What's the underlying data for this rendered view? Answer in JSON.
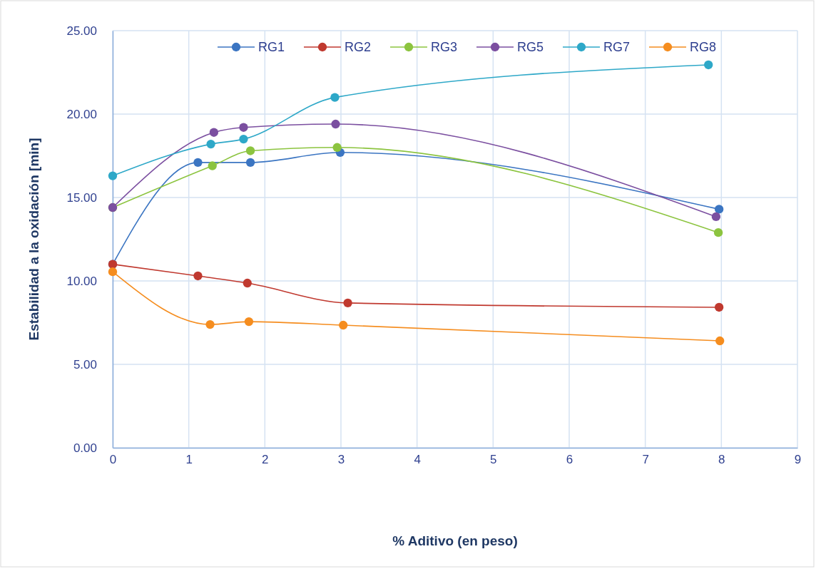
{
  "chart_data": {
    "type": "line",
    "xlabel": "% Aditivo  (en peso)",
    "ylabel": "Estabilidad a la oxidación  [min]",
    "xlim": [
      0,
      9
    ],
    "xticks": [
      0,
      1,
      2,
      3,
      4,
      5,
      6,
      7,
      8,
      9
    ],
    "ylim": [
      0,
      25
    ],
    "yticks": [
      {
        "value": 0,
        "label": "0.00"
      },
      {
        "value": 5,
        "label": "5.00"
      },
      {
        "value": 10,
        "label": "10.00"
      },
      {
        "value": 15,
        "label": "15.00"
      },
      {
        "value": 20,
        "label": "20.00"
      },
      {
        "value": 25,
        "label": "25.00"
      }
    ],
    "grid": true,
    "legend": "top",
    "marker": "circle",
    "line_style": "solid",
    "series": [
      {
        "name": "RG1",
        "color": "#3b75c2",
        "x": [
          0,
          1.12,
          1.81,
          2.99,
          7.97
        ],
        "values": [
          11.0,
          17.1,
          17.1,
          17.7,
          14.3
        ]
      },
      {
        "name": "RG2",
        "color": "#c0392f",
        "x": [
          0,
          1.12,
          1.77,
          3.09,
          7.97
        ],
        "values": [
          11.0,
          10.3,
          9.87,
          8.68,
          8.42
        ]
      },
      {
        "name": "RG3",
        "color": "#8cc43f",
        "x": [
          0,
          1.31,
          1.81,
          2.95,
          7.96
        ],
        "values": [
          14.4,
          16.9,
          17.8,
          18.0,
          12.9
        ]
      },
      {
        "name": "RG5",
        "color": "#7b4fa0",
        "x": [
          0,
          1.33,
          1.72,
          2.93,
          7.93
        ],
        "values": [
          14.4,
          18.9,
          19.2,
          19.4,
          13.85
        ]
      },
      {
        "name": "RG7",
        "color": "#2ea8c8",
        "x": [
          0,
          1.29,
          1.72,
          2.92,
          7.83
        ],
        "values": [
          16.3,
          18.2,
          18.5,
          21.0,
          22.95
        ]
      },
      {
        "name": "RG8",
        "color": "#f58d1f",
        "x": [
          0,
          1.28,
          1.79,
          3.03,
          7.98
        ],
        "values": [
          10.55,
          7.39,
          7.56,
          7.35,
          6.41
        ]
      }
    ]
  }
}
